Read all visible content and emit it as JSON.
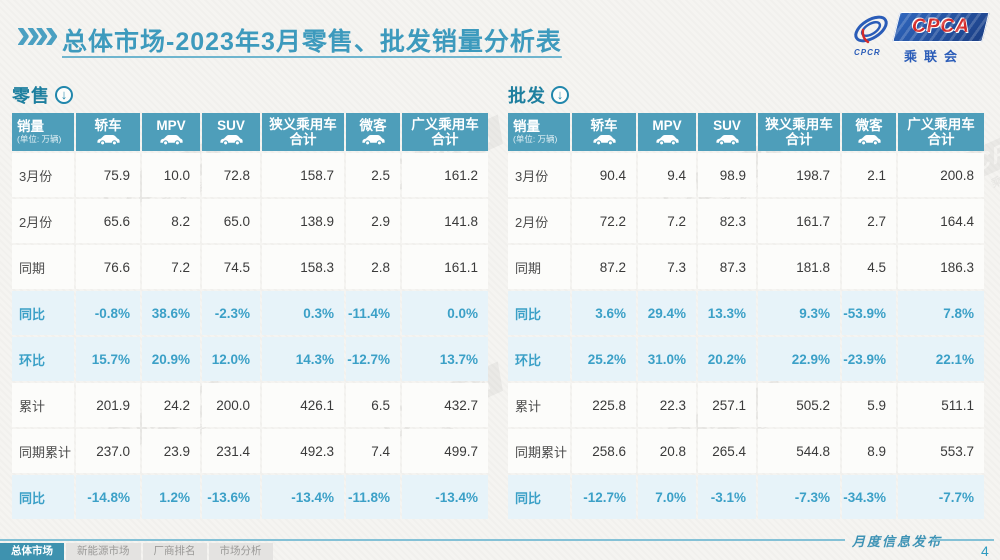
{
  "header": {
    "title": "总体市场-2023年3月零售、批发销量分析表",
    "logo": {
      "acronym": "CPCA",
      "name": "乘联会",
      "sub": "CPCR"
    }
  },
  "icons": {
    "chevron": "»»",
    "down_arrow": "↓"
  },
  "watermark": {
    "acronym": "CPCA",
    "name": "乘联会"
  },
  "tables": [
    {
      "section_label": "零售",
      "unit_label": "销量",
      "unit_sub": "(单位: 万辆)",
      "columns": [
        {
          "label": "轿车",
          "icon": "sedan-icon"
        },
        {
          "label": "MPV",
          "icon": "mpv-icon"
        },
        {
          "label": "SUV",
          "icon": "suv-icon"
        },
        {
          "label": "狭义乘用车",
          "label2": "合计"
        },
        {
          "label": "微客",
          "icon": "van-icon"
        },
        {
          "label": "广义乘用车",
          "label2": "合计"
        }
      ],
      "rows": [
        {
          "label": "3月份",
          "type": "value",
          "cells": [
            "75.9",
            "10.0",
            "72.8",
            "158.7",
            "2.5",
            "161.2"
          ]
        },
        {
          "label": "2月份",
          "type": "value",
          "cells": [
            "65.6",
            "8.2",
            "65.0",
            "138.9",
            "2.9",
            "141.8"
          ]
        },
        {
          "label": "同期",
          "type": "value",
          "cells": [
            "76.6",
            "7.2",
            "74.5",
            "158.3",
            "2.8",
            "161.1"
          ]
        },
        {
          "label": "同比",
          "type": "pct",
          "cells": [
            "-0.8%",
            "38.6%",
            "-2.3%",
            "0.3%",
            "-11.4%",
            "0.0%"
          ]
        },
        {
          "label": "环比",
          "type": "pct",
          "cells": [
            "15.7%",
            "20.9%",
            "12.0%",
            "14.3%",
            "-12.7%",
            "13.7%"
          ]
        },
        {
          "label": "累计",
          "type": "value",
          "cells": [
            "201.9",
            "24.2",
            "200.0",
            "426.1",
            "6.5",
            "432.7"
          ]
        },
        {
          "label": "同期累计",
          "type": "value",
          "cells": [
            "237.0",
            "23.9",
            "231.4",
            "492.3",
            "7.4",
            "499.7"
          ]
        },
        {
          "label": "同比",
          "type": "pct",
          "cells": [
            "-14.8%",
            "1.2%",
            "-13.6%",
            "-13.4%",
            "-11.8%",
            "-13.4%"
          ]
        }
      ]
    },
    {
      "section_label": "批发",
      "unit_label": "销量",
      "unit_sub": "(单位: 万辆)",
      "columns": [
        {
          "label": "轿车",
          "icon": "sedan-icon"
        },
        {
          "label": "MPV",
          "icon": "mpv-icon"
        },
        {
          "label": "SUV",
          "icon": "suv-icon"
        },
        {
          "label": "狭义乘用车",
          "label2": "合计"
        },
        {
          "label": "微客",
          "icon": "van-icon"
        },
        {
          "label": "广义乘用车",
          "label2": "合计"
        }
      ],
      "rows": [
        {
          "label": "3月份",
          "type": "value",
          "cells": [
            "90.4",
            "9.4",
            "98.9",
            "198.7",
            "2.1",
            "200.8"
          ]
        },
        {
          "label": "2月份",
          "type": "value",
          "cells": [
            "72.2",
            "7.2",
            "82.3",
            "161.7",
            "2.7",
            "164.4"
          ]
        },
        {
          "label": "同期",
          "type": "value",
          "cells": [
            "87.2",
            "7.3",
            "87.3",
            "181.8",
            "4.5",
            "186.3"
          ]
        },
        {
          "label": "同比",
          "type": "pct",
          "cells": [
            "3.6%",
            "29.4%",
            "13.3%",
            "9.3%",
            "-53.9%",
            "7.8%"
          ]
        },
        {
          "label": "环比",
          "type": "pct",
          "cells": [
            "25.2%",
            "31.0%",
            "20.2%",
            "22.9%",
            "-23.9%",
            "22.1%"
          ]
        },
        {
          "label": "累计",
          "type": "value",
          "cells": [
            "225.8",
            "22.3",
            "257.1",
            "505.2",
            "5.9",
            "511.1"
          ]
        },
        {
          "label": "同期累计",
          "type": "value",
          "cells": [
            "258.6",
            "20.8",
            "265.4",
            "544.8",
            "8.9",
            "553.7"
          ]
        },
        {
          "label": "同比",
          "type": "pct",
          "cells": [
            "-12.7%",
            "7.0%",
            "-3.1%",
            "-7.3%",
            "-34.3%",
            "-7.7%"
          ]
        }
      ]
    }
  ],
  "footer": {
    "tabs": [
      {
        "label": "总体市场",
        "active": true
      },
      {
        "label": "新能源市场",
        "active": false
      },
      {
        "label": "厂商排名",
        "active": false
      },
      {
        "label": "市场分析",
        "active": false
      }
    ],
    "publish_label": "月度信息发布",
    "page_number": "4"
  }
}
